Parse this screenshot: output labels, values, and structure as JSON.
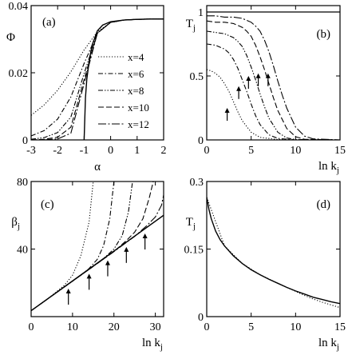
{
  "chart_data": [
    {
      "panel": "(a)",
      "type": "line",
      "xlabel": "α",
      "ylabel": "Φ",
      "xlim": [
        -3,
        2
      ],
      "ylim": [
        0,
        0.04
      ],
      "xticks": [
        -3,
        -2,
        -1,
        0,
        1,
        2
      ],
      "yticks": [
        0,
        0.02,
        0.04
      ],
      "legend_position": "center-right",
      "series": [
        {
          "name": "x=4",
          "style": "dotted",
          "x": [
            -3,
            -2.5,
            -2,
            -1.5,
            -1,
            -0.5,
            0,
            0.5,
            1,
            1.5,
            2
          ],
          "y": [
            0.0073,
            0.0105,
            0.0148,
            0.0203,
            0.0268,
            0.0322,
            0.035,
            0.0357,
            0.0359,
            0.036,
            0.036
          ]
        },
        {
          "name": "x=6",
          "style": "dash-dot",
          "x": [
            -3,
            -2.5,
            -2,
            -1.5,
            -1,
            -0.5,
            0,
            0.5,
            1,
            1.5,
            2
          ],
          "y": [
            0.0012,
            0.0028,
            0.0062,
            0.0128,
            0.0228,
            0.0318,
            0.035,
            0.0357,
            0.0359,
            0.036,
            0.036
          ]
        },
        {
          "name": "x=8",
          "style": "dash-dot-dot",
          "x": [
            -3,
            -2.5,
            -2,
            -1.5,
            -1,
            -0.5,
            0,
            0.5,
            1,
            1.5,
            2
          ],
          "y": [
            0.0002,
            0.0007,
            0.0022,
            0.0068,
            0.0198,
            0.0318,
            0.035,
            0.0357,
            0.0359,
            0.036,
            0.036
          ]
        },
        {
          "name": "x=10",
          "style": "dashed",
          "x": [
            -3,
            -2.5,
            -2,
            -1.5,
            -1,
            -0.5,
            0,
            0.5,
            1,
            1.5,
            2
          ],
          "y": [
            0.0,
            0.0002,
            0.0008,
            0.0038,
            0.018,
            0.0318,
            0.035,
            0.0357,
            0.0359,
            0.036,
            0.036
          ]
        },
        {
          "name": "x=12",
          "style": "long-dash-dot",
          "x": [
            -3,
            -2.5,
            -2,
            -1.5,
            -1,
            -0.5,
            0,
            0.5,
            1,
            1.5,
            2
          ],
          "y": [
            0.0,
            0.0,
            0.0003,
            0.002,
            0.0168,
            0.0318,
            0.035,
            0.0357,
            0.0359,
            0.036,
            0.036
          ]
        },
        {
          "name": "",
          "style": "solid",
          "x": [
            -1,
            -0.95,
            -0.9,
            -0.8,
            -0.7,
            -0.5,
            -0.3,
            0,
            0.5,
            1,
            1.5,
            2
          ],
          "y": [
            0,
            0.0125,
            0.018,
            0.024,
            0.0282,
            0.0325,
            0.0342,
            0.0352,
            0.0357,
            0.0359,
            0.036,
            0.036
          ]
        }
      ]
    },
    {
      "panel": "(b)",
      "type": "line",
      "xlabel": "ln k_j",
      "ylabel": "T_j",
      "xlim": [
        0,
        15
      ],
      "ylim": [
        0,
        1.05
      ],
      "xticks": [
        0,
        5,
        10,
        15
      ],
      "yticks": [
        0,
        0.5,
        1
      ],
      "ytick_labels": [
        "0",
        "0.5",
        "1"
      ],
      "reference_line": 1,
      "arrows_x": [
        2.3,
        3.6,
        4.7,
        5.8,
        6.9
      ],
      "series": [
        {
          "style": "dotted",
          "x": [
            0,
            0.5,
            1,
            1.5,
            2,
            2.5,
            3,
            3.5,
            4,
            5,
            6,
            8,
            10,
            15
          ],
          "y": [
            0.55,
            0.54,
            0.52,
            0.49,
            0.44,
            0.38,
            0.3,
            0.22,
            0.15,
            0.06,
            0.02,
            0.003,
            0,
            0
          ]
        },
        {
          "style": "dash-dot",
          "x": [
            0,
            1,
            2,
            2.5,
            3,
            3.5,
            4,
            4.5,
            5,
            5.5,
            6,
            7,
            8,
            10,
            15
          ],
          "y": [
            0.75,
            0.74,
            0.71,
            0.68,
            0.63,
            0.56,
            0.47,
            0.38,
            0.28,
            0.19,
            0.12,
            0.04,
            0.012,
            0,
            0
          ]
        },
        {
          "style": "dash-dot-dot",
          "x": [
            0,
            1,
            2,
            3,
            3.5,
            4,
            4.5,
            5,
            5.5,
            6,
            6.5,
            7,
            8,
            9,
            10,
            15
          ],
          "y": [
            0.85,
            0.84,
            0.83,
            0.8,
            0.77,
            0.73,
            0.66,
            0.57,
            0.47,
            0.36,
            0.26,
            0.17,
            0.06,
            0.015,
            0.003,
            0
          ]
        },
        {
          "style": "dashed",
          "x": [
            0,
            1,
            2,
            3,
            4,
            4.5,
            5,
            5.5,
            6,
            6.5,
            7,
            7.5,
            8,
            9,
            10,
            11,
            15
          ],
          "y": [
            0.93,
            0.92,
            0.92,
            0.91,
            0.88,
            0.85,
            0.81,
            0.74,
            0.65,
            0.55,
            0.44,
            0.33,
            0.23,
            0.09,
            0.025,
            0.005,
            0
          ]
        },
        {
          "style": "long-dash-dot",
          "x": [
            0,
            1,
            2,
            3,
            4,
            5,
            5.5,
            6,
            6.5,
            7,
            7.5,
            8,
            8.5,
            9,
            10,
            11,
            12,
            15
          ],
          "y": [
            0.97,
            0.97,
            0.96,
            0.96,
            0.95,
            0.92,
            0.89,
            0.85,
            0.78,
            0.69,
            0.58,
            0.46,
            0.35,
            0.25,
            0.1,
            0.03,
            0.008,
            0
          ]
        }
      ]
    },
    {
      "panel": "(c)",
      "type": "line",
      "xlabel": "ln k_j",
      "ylabel": "β_j",
      "xlim": [
        0,
        32
      ],
      "ylim": [
        0,
        80
      ],
      "xticks": [
        0,
        10,
        20,
        30
      ],
      "yticks": [
        40,
        80
      ],
      "ytick_labels": [
        "40",
        "80"
      ],
      "arrows_x": [
        9,
        14,
        18.5,
        23,
        27.5
      ],
      "series": [
        {
          "style": "solid",
          "x": [
            0,
            32
          ],
          "y": [
            3.5,
            60
          ]
        },
        {
          "style": "dotted",
          "x": [
            0,
            4,
            8,
            10,
            12,
            14,
            15
          ],
          "y": [
            3.5,
            10.5,
            18.5,
            24.5,
            36,
            56,
            80
          ]
        },
        {
          "style": "dash-dot",
          "x": [
            0,
            8,
            12,
            14,
            16,
            17.5,
            19,
            20
          ],
          "y": [
            3.5,
            17.5,
            24.5,
            28.5,
            34,
            42,
            58,
            80
          ]
        },
        {
          "style": "dash-dot-dot",
          "x": [
            0,
            12,
            16,
            18,
            20,
            22,
            23.5,
            24.5
          ],
          "y": [
            3.5,
            24.5,
            31.5,
            35.5,
            40,
            48,
            62,
            80
          ]
        },
        {
          "style": "dashed",
          "x": [
            0,
            16,
            20,
            23,
            25,
            27,
            28.5,
            29.5
          ],
          "y": [
            3.5,
            31.5,
            38.5,
            45,
            50,
            58,
            70,
            80
          ]
        },
        {
          "style": "long-dash-dot",
          "x": [
            0,
            20,
            25,
            28,
            30,
            31.5,
            32
          ],
          "y": [
            3.5,
            38.5,
            47.5,
            54,
            59,
            66,
            72
          ]
        }
      ]
    },
    {
      "panel": "(d)",
      "type": "line",
      "xlabel": "ln k_j",
      "ylabel": "T_j",
      "xlim": [
        0,
        15
      ],
      "ylim": [
        0,
        0.3
      ],
      "xticks": [
        0,
        5,
        10,
        15
      ],
      "yticks": [
        0,
        0.15,
        0.3
      ],
      "ytick_labels": [
        "0",
        "0.15",
        "0.3"
      ],
      "series": [
        {
          "style": "solid",
          "x": [
            0,
            0.25,
            0.5,
            1,
            1.5,
            2,
            3,
            4,
            5,
            6,
            7,
            8,
            9,
            10,
            11,
            12,
            13,
            14,
            15
          ],
          "y": [
            0.265,
            0.238,
            0.218,
            0.19,
            0.171,
            0.157,
            0.135,
            0.118,
            0.104,
            0.093,
            0.083,
            0.074,
            0.065,
            0.057,
            0.05,
            0.043,
            0.038,
            0.033,
            0.029
          ]
        },
        {
          "style": "dotted",
          "x": [
            0,
            2,
            4,
            6,
            8,
            9,
            10,
            11,
            12,
            13,
            14,
            15
          ],
          "y": [
            0.265,
            0.157,
            0.118,
            0.093,
            0.074,
            0.065,
            0.056,
            0.047,
            0.039,
            0.032,
            0.026,
            0.02
          ]
        }
      ]
    }
  ]
}
